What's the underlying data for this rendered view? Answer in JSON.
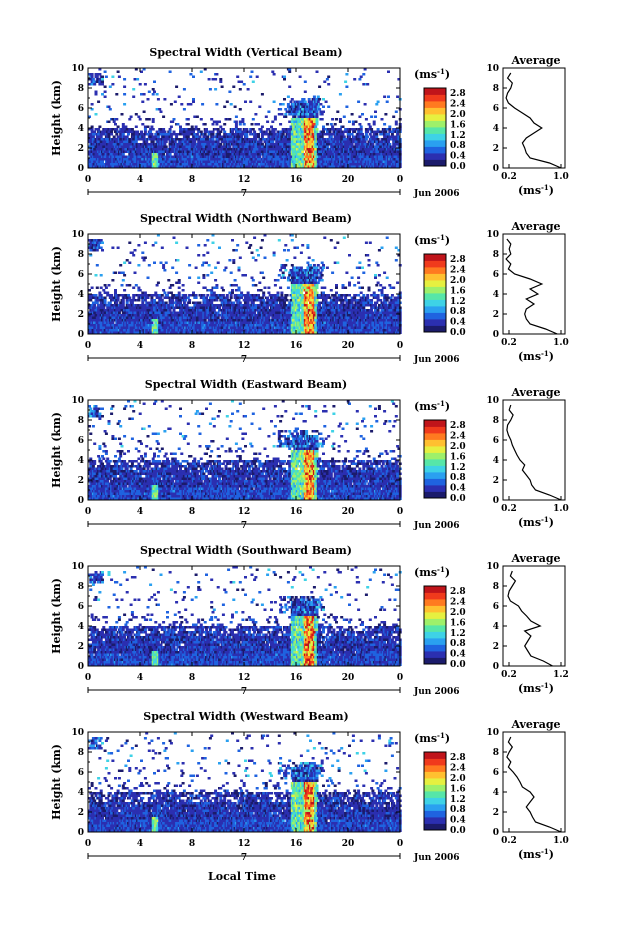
{
  "chart_data": [
    {
      "type": "heatmap",
      "title": "Spectral Width (Vertical Beam)",
      "ylabel": "Height (km)",
      "xlim": [
        0,
        24
      ],
      "ylim": [
        0,
        10
      ],
      "xticks": [
        "0",
        "4",
        "8",
        "12",
        "16",
        "20",
        "0"
      ],
      "yticks": [
        "0",
        "2",
        "4",
        "6",
        "8",
        "10"
      ],
      "day_label": "7",
      "date_label": "Jun 2006"
    },
    {
      "type": "heatmap",
      "title": "Spectral Width (Northward Beam)",
      "ylabel": "Height (km)",
      "xlim": [
        0,
        24
      ],
      "ylim": [
        0,
        10
      ],
      "xticks": [
        "0",
        "4",
        "8",
        "12",
        "16",
        "20",
        "0"
      ],
      "yticks": [
        "0",
        "2",
        "4",
        "6",
        "8",
        "10"
      ],
      "day_label": "7",
      "date_label": "Jun 2006"
    },
    {
      "type": "heatmap",
      "title": "Spectral Width (Eastward Beam)",
      "ylabel": "Height (km)",
      "xlim": [
        0,
        24
      ],
      "ylim": [
        0,
        10
      ],
      "xticks": [
        "0",
        "4",
        "8",
        "12",
        "16",
        "20",
        "0"
      ],
      "yticks": [
        "0",
        "2",
        "4",
        "6",
        "8",
        "10"
      ],
      "day_label": "7",
      "date_label": "Jun 2006"
    },
    {
      "type": "heatmap",
      "title": "Spectral Width (Southward Beam)",
      "ylabel": "Height (km)",
      "xlim": [
        0,
        24
      ],
      "ylim": [
        0,
        10
      ],
      "xticks": [
        "0",
        "4",
        "8",
        "12",
        "16",
        "20",
        "0"
      ],
      "yticks": [
        "0",
        "2",
        "4",
        "6",
        "8",
        "10"
      ],
      "day_label": "7",
      "date_label": "Jun 2006"
    },
    {
      "type": "heatmap",
      "title": "Spectral Width (Westward Beam)",
      "ylabel": "Height (km)",
      "xlim": [
        0,
        24
      ],
      "ylim": [
        0,
        10
      ],
      "xticks": [
        "0",
        "4",
        "8",
        "12",
        "16",
        "20",
        "0"
      ],
      "yticks": [
        "0",
        "2",
        "4",
        "6",
        "8",
        "10"
      ],
      "day_label": "7",
      "date_label": "Jun 2006",
      "xlabel": "Local Time"
    }
  ],
  "colorbar": {
    "unit": "(ms",
    "unit_exp": "-1",
    "unit_close": ")",
    "ticks": [
      "0.0",
      "0.4",
      "0.8",
      "1.2",
      "1.6",
      "2.0",
      "2.4",
      "2.8"
    ],
    "range": [
      0,
      3.0
    ],
    "colors": [
      "#1b1b6b",
      "#2b2fb0",
      "#1f63e0",
      "#2aa0f0",
      "#3ed2e6",
      "#56e6a8",
      "#9ef06a",
      "#e6f040",
      "#ffc030",
      "#ff7a20",
      "#f03a1c",
      "#c0141a"
    ]
  },
  "average_profiles": [
    {
      "type": "line",
      "title": "Average",
      "xlabel": "(ms",
      "xlabel_exp": "-1",
      "xlabel_close": ")",
      "xlim": [
        0.2,
        1.0
      ],
      "ylim": [
        0,
        10
      ],
      "xticks": [
        "0.2",
        "1.0"
      ],
      "yticks": [
        "0",
        "2",
        "4",
        "6",
        "8",
        "10"
      ],
      "height": [
        0,
        0.5,
        1,
        1.5,
        2,
        2.5,
        3,
        3.5,
        4,
        4.5,
        5,
        5.5,
        6,
        6.5,
        7,
        7.5,
        8,
        8.5,
        9,
        9.5
      ],
      "values": [
        0.95,
        0.8,
        0.55,
        0.5,
        0.48,
        0.45,
        0.5,
        0.6,
        0.7,
        0.6,
        0.55,
        0.45,
        0.35,
        0.27,
        0.24,
        0.26,
        0.3,
        0.32,
        0.26,
        0.3
      ]
    },
    {
      "type": "line",
      "title": "Average",
      "xlabel": "(ms",
      "xlabel_exp": "-1",
      "xlabel_close": ")",
      "xlim": [
        0.2,
        1.0
      ],
      "ylim": [
        0,
        10
      ],
      "xticks": [
        "0.2",
        "1.0"
      ],
      "yticks": [
        "0",
        "2",
        "4",
        "6",
        "8",
        "10"
      ],
      "height": [
        0,
        0.5,
        1,
        1.5,
        2,
        2.5,
        3,
        3.5,
        4,
        4.5,
        5,
        5.5,
        6,
        6.5,
        7,
        7.5,
        8,
        8.5,
        9,
        9.5
      ],
      "values": [
        0.9,
        0.75,
        0.55,
        0.5,
        0.48,
        0.5,
        0.6,
        0.5,
        0.65,
        0.55,
        0.7,
        0.55,
        0.35,
        0.27,
        0.3,
        0.24,
        0.3,
        0.28,
        0.3,
        0.25
      ]
    },
    {
      "type": "line",
      "title": "Average",
      "xlabel": "(ms",
      "xlabel_exp": "-1",
      "xlabel_close": ")",
      "xlim": [
        0.2,
        1.0
      ],
      "ylim": [
        0,
        10
      ],
      "xticks": [
        "0.2",
        "1.0"
      ],
      "yticks": [
        "0",
        "2",
        "4",
        "6",
        "8",
        "10"
      ],
      "height": [
        0,
        0.5,
        1,
        1.5,
        2,
        2.5,
        3,
        3.5,
        4,
        4.5,
        5,
        5.5,
        6,
        6.5,
        7,
        7.5,
        8,
        8.5,
        9,
        9.5
      ],
      "values": [
        0.95,
        0.8,
        0.62,
        0.57,
        0.55,
        0.5,
        0.45,
        0.48,
        0.42,
        0.38,
        0.35,
        0.32,
        0.3,
        0.27,
        0.25,
        0.26,
        0.3,
        0.33,
        0.28,
        0.3
      ]
    },
    {
      "type": "line",
      "title": "Average",
      "xlabel": "(ms",
      "xlabel_exp": "-1",
      "xlabel_close": ")",
      "xlim": [
        0.2,
        1.2
      ],
      "ylim": [
        0,
        10
      ],
      "xticks": [
        "0.2",
        "1.2"
      ],
      "yticks": [
        "0",
        "2",
        "4",
        "6",
        "8",
        "10"
      ],
      "height": [
        0,
        0.5,
        1,
        1.5,
        2,
        2.5,
        3,
        3.5,
        4,
        4.5,
        5,
        5.5,
        6,
        6.5,
        7,
        7.5,
        8,
        8.5,
        9,
        9.5
      ],
      "values": [
        1.0,
        0.85,
        0.65,
        0.6,
        0.55,
        0.6,
        0.65,
        0.55,
        0.8,
        0.65,
        0.58,
        0.5,
        0.45,
        0.32,
        0.28,
        0.3,
        0.35,
        0.4,
        0.32,
        0.35
      ]
    },
    {
      "type": "line",
      "title": "Average",
      "xlabel": "(ms",
      "xlabel_exp": "-1",
      "xlabel_close": ")",
      "xlim": [
        0.2,
        1.0
      ],
      "ylim": [
        0,
        10
      ],
      "xticks": [
        "0.2",
        "1.0"
      ],
      "yticks": [
        "0",
        "2",
        "4",
        "6",
        "8",
        "10"
      ],
      "height": [
        0,
        0.5,
        1,
        1.5,
        2,
        2.5,
        3,
        3.5,
        4,
        4.5,
        5,
        5.5,
        6,
        6.5,
        7,
        7.5,
        8,
        8.5,
        9,
        9.5
      ],
      "values": [
        0.95,
        0.8,
        0.62,
        0.58,
        0.55,
        0.5,
        0.55,
        0.6,
        0.55,
        0.45,
        0.42,
        0.38,
        0.33,
        0.27,
        0.3,
        0.25,
        0.28,
        0.32,
        0.27,
        0.3
      ]
    }
  ]
}
